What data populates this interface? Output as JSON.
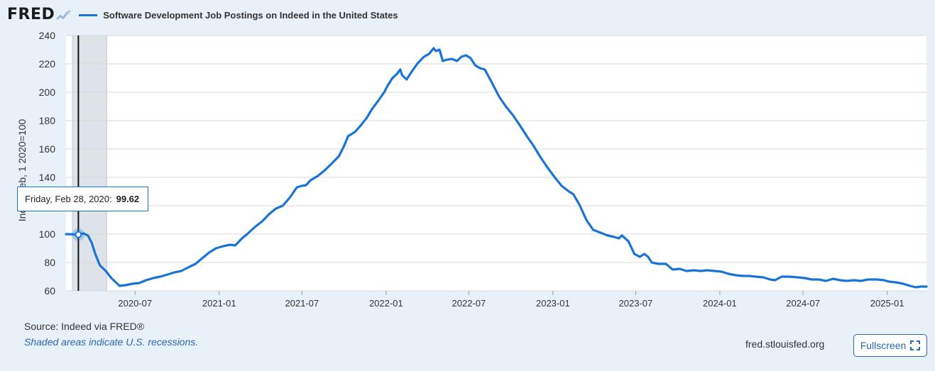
{
  "header": {
    "logo_text": "FRED",
    "series_title": "Software Development Job Postings on Indeed in the United States"
  },
  "footer": {
    "source": "Source: Indeed via FRED®",
    "recession_note": "Shaded areas indicate U.S. recessions.",
    "site": "fred.stlouisfed.org",
    "fullscreen_label": "Fullscreen"
  },
  "tooltip": {
    "date": "Friday, Feb 28, 2020:",
    "value": "99.62"
  },
  "colors": {
    "line": "#1a73d6",
    "recession": "#dde3e8",
    "grid": "#d8d8d8"
  },
  "chart_data": {
    "type": "line",
    "ylabel": "Index Feb, 1 2020=100",
    "ylim": [
      60,
      240
    ],
    "yticks": [
      60,
      80,
      100,
      120,
      140,
      160,
      180,
      200,
      220,
      240
    ],
    "xlim": [
      "2020-02-01",
      "2025-03-28"
    ],
    "xticks": [
      "2020-07",
      "2021-01",
      "2021-07",
      "2022-01",
      "2022-07",
      "2023-01",
      "2023-07",
      "2024-01",
      "2024-07",
      "2025-01"
    ],
    "recessions": [
      [
        "2020-02-15",
        "2020-04-30"
      ]
    ],
    "highlight": {
      "x": "2020-02-28",
      "y": 99.62
    },
    "series": [
      {
        "points": [
          [
            "2020-02-01",
            100
          ],
          [
            "2020-02-14",
            99.8
          ],
          [
            "2020-02-28",
            99.62
          ],
          [
            "2020-03-10",
            100.5
          ],
          [
            "2020-03-20",
            99
          ],
          [
            "2020-03-28",
            94
          ],
          [
            "2020-04-05",
            86
          ],
          [
            "2020-04-15",
            78
          ],
          [
            "2020-04-28",
            74
          ],
          [
            "2020-05-10",
            69
          ],
          [
            "2020-05-20",
            66
          ],
          [
            "2020-05-28",
            63.5
          ],
          [
            "2020-06-10",
            64
          ],
          [
            "2020-06-25",
            65
          ],
          [
            "2020-07-10",
            65.5
          ],
          [
            "2020-07-25",
            67.5
          ],
          [
            "2020-08-10",
            69
          ],
          [
            "2020-08-25",
            70
          ],
          [
            "2020-09-10",
            71.5
          ],
          [
            "2020-09-25",
            73
          ],
          [
            "2020-10-10",
            74
          ],
          [
            "2020-10-25",
            76.5
          ],
          [
            "2020-11-10",
            79
          ],
          [
            "2020-11-25",
            83
          ],
          [
            "2020-12-10",
            87
          ],
          [
            "2020-12-25",
            90
          ],
          [
            "2021-01-10",
            91.5
          ],
          [
            "2021-01-25",
            92.5
          ],
          [
            "2021-02-05",
            92
          ],
          [
            "2021-02-20",
            97
          ],
          [
            "2021-03-05",
            100.5
          ],
          [
            "2021-03-20",
            105
          ],
          [
            "2021-04-05",
            109
          ],
          [
            "2021-04-20",
            114
          ],
          [
            "2021-05-05",
            118
          ],
          [
            "2021-05-20",
            120
          ],
          [
            "2021-06-05",
            126
          ],
          [
            "2021-06-20",
            133
          ],
          [
            "2021-07-01",
            134
          ],
          [
            "2021-07-10",
            134.5
          ],
          [
            "2021-07-20",
            138
          ],
          [
            "2021-08-05",
            141
          ],
          [
            "2021-08-20",
            145
          ],
          [
            "2021-09-05",
            150
          ],
          [
            "2021-09-20",
            155
          ],
          [
            "2021-10-01",
            162
          ],
          [
            "2021-10-10",
            169
          ],
          [
            "2021-10-25",
            172
          ],
          [
            "2021-11-05",
            176
          ],
          [
            "2021-11-20",
            182
          ],
          [
            "2021-12-01",
            188
          ],
          [
            "2021-12-15",
            194
          ],
          [
            "2021-12-28",
            200
          ],
          [
            "2022-01-05",
            205
          ],
          [
            "2022-01-15",
            210
          ],
          [
            "2022-01-25",
            213
          ],
          [
            "2022-02-01",
            216
          ],
          [
            "2022-02-05",
            212
          ],
          [
            "2022-02-15",
            209
          ],
          [
            "2022-02-25",
            214
          ],
          [
            "2022-03-10",
            220
          ],
          [
            "2022-03-25",
            225
          ],
          [
            "2022-04-05",
            227
          ],
          [
            "2022-04-15",
            231
          ],
          [
            "2022-04-20",
            229
          ],
          [
            "2022-04-28",
            230
          ],
          [
            "2022-05-05",
            222
          ],
          [
            "2022-05-15",
            223
          ],
          [
            "2022-05-25",
            223.5
          ],
          [
            "2022-06-05",
            222
          ],
          [
            "2022-06-15",
            225
          ],
          [
            "2022-06-25",
            226
          ],
          [
            "2022-07-05",
            224
          ],
          [
            "2022-07-15",
            219
          ],
          [
            "2022-07-25",
            217
          ],
          [
            "2022-08-05",
            216
          ],
          [
            "2022-08-20",
            207
          ],
          [
            "2022-09-05",
            197
          ],
          [
            "2022-09-20",
            190
          ],
          [
            "2022-10-05",
            184
          ],
          [
            "2022-10-20",
            177
          ],
          [
            "2022-11-05",
            169
          ],
          [
            "2022-11-20",
            162
          ],
          [
            "2022-12-05",
            154
          ],
          [
            "2022-12-20",
            147
          ],
          [
            "2023-01-05",
            140
          ],
          [
            "2023-01-20",
            134
          ],
          [
            "2023-02-05",
            130
          ],
          [
            "2023-02-15",
            128
          ],
          [
            "2023-03-01",
            120
          ],
          [
            "2023-03-15",
            110
          ],
          [
            "2023-03-30",
            103
          ],
          [
            "2023-04-15",
            101
          ],
          [
            "2023-05-01",
            99
          ],
          [
            "2023-05-15",
            98
          ],
          [
            "2023-05-25",
            97
          ],
          [
            "2023-06-01",
            99
          ],
          [
            "2023-06-15",
            95
          ],
          [
            "2023-06-28",
            86
          ],
          [
            "2023-07-10",
            84
          ],
          [
            "2023-07-20",
            86
          ],
          [
            "2023-07-28",
            84
          ],
          [
            "2023-08-05",
            80
          ],
          [
            "2023-08-20",
            79
          ],
          [
            "2023-09-05",
            79
          ],
          [
            "2023-09-20",
            75
          ],
          [
            "2023-10-05",
            75.5
          ],
          [
            "2023-10-20",
            74
          ],
          [
            "2023-11-05",
            74.5
          ],
          [
            "2023-11-20",
            74
          ],
          [
            "2023-12-05",
            74.5
          ],
          [
            "2023-12-20",
            74
          ],
          [
            "2024-01-05",
            73.5
          ],
          [
            "2024-01-20",
            72
          ],
          [
            "2024-02-05",
            71
          ],
          [
            "2024-02-20",
            70.5
          ],
          [
            "2024-03-05",
            70.5
          ],
          [
            "2024-03-20",
            70
          ],
          [
            "2024-04-05",
            69.5
          ],
          [
            "2024-04-20",
            68
          ],
          [
            "2024-05-01",
            67.5
          ],
          [
            "2024-05-15",
            70
          ],
          [
            "2024-06-01",
            70
          ],
          [
            "2024-06-20",
            69.5
          ],
          [
            "2024-07-05",
            69
          ],
          [
            "2024-07-20",
            68
          ],
          [
            "2024-08-05",
            68
          ],
          [
            "2024-08-20",
            67
          ],
          [
            "2024-09-05",
            68.5
          ],
          [
            "2024-09-20",
            67.5
          ],
          [
            "2024-10-05",
            67
          ],
          [
            "2024-10-20",
            67.5
          ],
          [
            "2024-11-05",
            67
          ],
          [
            "2024-11-20",
            68
          ],
          [
            "2024-12-10",
            68
          ],
          [
            "2024-12-25",
            67.5
          ],
          [
            "2025-01-05",
            66.5
          ],
          [
            "2025-01-20",
            66
          ],
          [
            "2025-02-05",
            65
          ],
          [
            "2025-02-20",
            63.5
          ],
          [
            "2025-03-05",
            62.5
          ],
          [
            "2025-03-15",
            63
          ],
          [
            "2025-03-28",
            63
          ]
        ]
      }
    ]
  }
}
